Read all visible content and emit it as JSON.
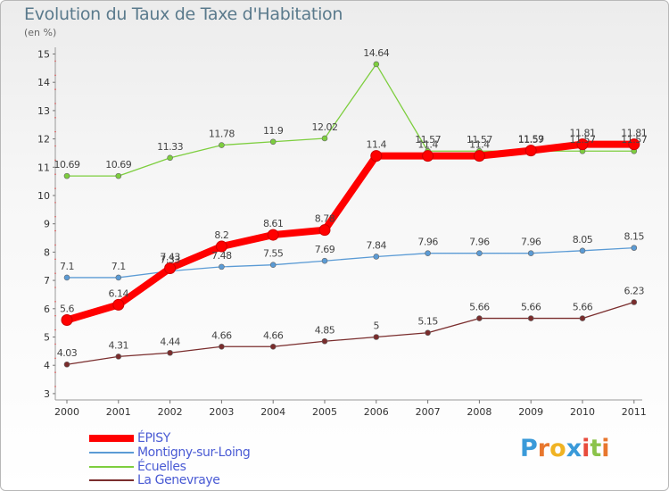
{
  "chart_data": {
    "type": "line",
    "title": "Evolution du Taux de Taxe d'Habitation",
    "subtitle": "(en %)",
    "x": [
      "2000",
      "2001",
      "2002",
      "2003",
      "2004",
      "2005",
      "2006",
      "2007",
      "2008",
      "2009",
      "2010",
      "2011"
    ],
    "ylim": [
      3,
      15
    ],
    "yticks": [
      3,
      4,
      5,
      6,
      7,
      8,
      9,
      10,
      11,
      12,
      13,
      14,
      15
    ],
    "grid": false,
    "legend_position": "bottom-left",
    "series": [
      {
        "name": "ÉPISY",
        "color": "#ff0000",
        "values": [
          5.6,
          6.14,
          7.43,
          8.2,
          8.61,
          8.78,
          11.4,
          11.4,
          11.4,
          11.59,
          11.81,
          11.81
        ],
        "labels": [
          "5.6",
          "6.14",
          "7.43",
          "8.2",
          "8.61",
          "8.78",
          "11.4",
          "11.4",
          "11.4",
          "11.59",
          "11.81",
          "11.81"
        ]
      },
      {
        "name": "Montigny-sur-Loing",
        "color": "#5b9bd5",
        "values": [
          7.1,
          7.1,
          7.33,
          7.48,
          7.55,
          7.69,
          7.84,
          7.96,
          7.96,
          7.96,
          8.05,
          8.15
        ],
        "labels": [
          "7.1",
          "7.1",
          "7.33",
          "7.48",
          "7.55",
          "7.69",
          "7.84",
          "7.96",
          "7.96",
          "7.96",
          "8.05",
          "8.15"
        ]
      },
      {
        "name": "Écuelles",
        "color": "#7dce3e",
        "values": [
          10.69,
          10.69,
          11.33,
          11.78,
          11.9,
          12.02,
          14.64,
          11.57,
          11.57,
          11.57,
          11.57,
          11.57
        ],
        "labels": [
          "10.69",
          "10.69",
          "11.33",
          "11.78",
          "11.9",
          "12.02",
          "14.64",
          "11.57",
          "11.57",
          "11.57",
          "11.57",
          "11.57"
        ]
      },
      {
        "name": "La Genevraye",
        "color": "#7a2d2d",
        "values": [
          4.03,
          4.31,
          4.44,
          4.66,
          4.66,
          4.85,
          5.0,
          5.15,
          5.66,
          5.66,
          5.66,
          6.23
        ],
        "labels": [
          "4.03",
          "4.31",
          "4.44",
          "4.66",
          "4.66",
          "4.85",
          "5",
          "5.15",
          "5.66",
          "5.66",
          "5.66",
          "6.23"
        ]
      }
    ]
  },
  "branding": {
    "logo_letters": [
      "P",
      "r",
      "o",
      "x",
      "i",
      "t",
      "i"
    ],
    "logo_colors": [
      "#3a9ad9",
      "#e8772e",
      "#f0b323",
      "#3a9ad9",
      "#e84b3c",
      "#8bc34a",
      "#e8772e"
    ]
  }
}
